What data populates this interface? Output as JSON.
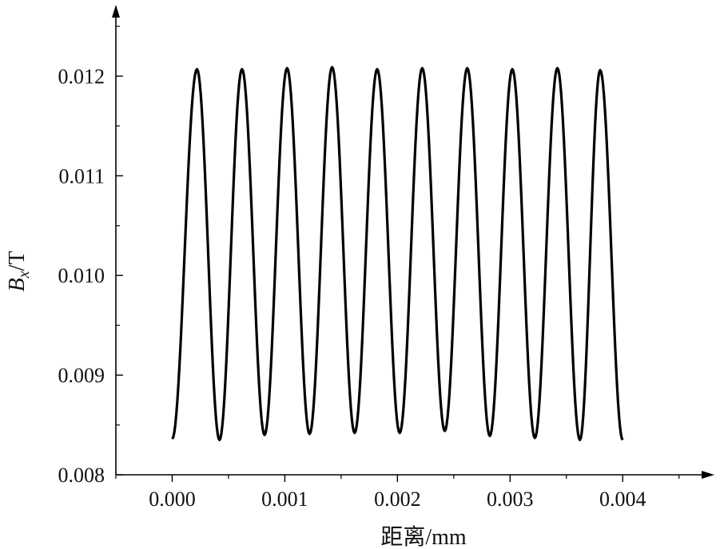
{
  "chart_data": {
    "type": "line",
    "title": "",
    "xlabel": "距离/mm",
    "ylabel": {
      "symbol": "B",
      "subscript": "x",
      "unit": "/T"
    },
    "xlim": [
      -0.0005,
      0.0048
    ],
    "ylim": [
      0.008,
      0.0127
    ],
    "x_ticks": [
      "0.000",
      "0.001",
      "0.002",
      "0.003",
      "0.004"
    ],
    "x_tick_values": [
      0.0,
      0.001,
      0.002,
      0.003,
      0.004
    ],
    "y_ticks": [
      "0.008",
      "0.009",
      "0.010",
      "0.011",
      "0.012"
    ],
    "y_tick_values": [
      0.008,
      0.009,
      0.01,
      0.011,
      0.012
    ],
    "grid": false,
    "series": [
      {
        "color": "#000000",
        "waveform": "sinusoid",
        "x_start": 0.0,
        "x_end": 0.004,
        "period": 0.0004,
        "peaks": [
          [
            0.00022,
            0.01207
          ],
          [
            0.00062,
            0.01207
          ],
          [
            0.00102,
            0.01208
          ],
          [
            0.00142,
            0.01209
          ],
          [
            0.00182,
            0.01207
          ],
          [
            0.00222,
            0.01208
          ],
          [
            0.00262,
            0.01208
          ],
          [
            0.00302,
            0.01207
          ],
          [
            0.00342,
            0.01208
          ],
          [
            0.0038,
            0.01206
          ]
        ],
        "troughs": [
          [
            0.0,
            0.00836
          ],
          [
            0.00042,
            0.00835
          ],
          [
            0.00082,
            0.0084
          ],
          [
            0.00122,
            0.00841
          ],
          [
            0.00162,
            0.00842
          ],
          [
            0.00202,
            0.00842
          ],
          [
            0.00242,
            0.00844
          ],
          [
            0.00282,
            0.00839
          ],
          [
            0.00322,
            0.00837
          ],
          [
            0.00362,
            0.00835
          ],
          [
            0.004,
            0.00835
          ]
        ]
      }
    ]
  }
}
